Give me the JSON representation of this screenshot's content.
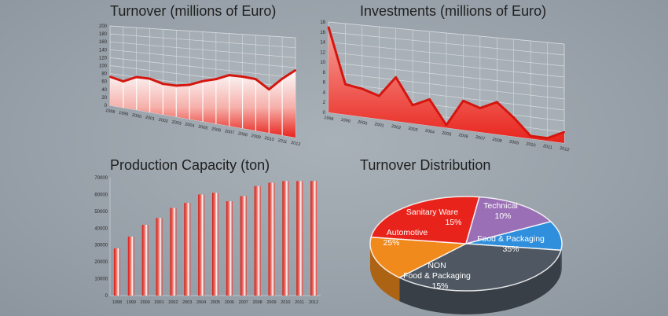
{
  "charts": {
    "turnover": {
      "title": "Turnover (millions of Euro)",
      "chart_data": {
        "type": "area",
        "title": "Turnover (millions of Euro)",
        "x": [
          "1998",
          "1999",
          "2000",
          "2001",
          "2002",
          "2003",
          "2004",
          "2005",
          "2006",
          "2007",
          "2008",
          "2009",
          "2010",
          "2011",
          "2012"
        ],
        "y_ticks": [
          "0",
          "20",
          "40",
          "60",
          "80",
          "100",
          "120",
          "140",
          "160",
          "180",
          "200"
        ],
        "ylim": [
          0,
          200
        ],
        "values": [
          72,
          65,
          80,
          80,
          72,
          72,
          78,
          90,
          98,
          110,
          110,
          108,
          90,
          115,
          135
        ],
        "grid": true,
        "color": "#e8231c"
      }
    },
    "investments": {
      "title": "Investments (millions of Euro)",
      "chart_data": {
        "type": "area",
        "title": "Investments (millions of Euro)",
        "x": [
          "1998",
          "1999",
          "2000",
          "2001",
          "2002",
          "2003",
          "2004",
          "2005",
          "2006",
          "2007",
          "2008",
          "2009",
          "2010",
          "2011",
          "2012"
        ],
        "y_ticks": [
          "0",
          "2",
          "4",
          "6",
          "8",
          "10",
          "12",
          "14",
          "16",
          "18"
        ],
        "ylim": [
          0,
          18
        ],
        "values": [
          17,
          6,
          5.5,
          4.5,
          8.5,
          3.5,
          5,
          0.5,
          5.5,
          4.5,
          6,
          3.5,
          0.5,
          0.5,
          2
        ],
        "grid": true,
        "color": "#e8231c"
      }
    },
    "capacity": {
      "title": "Production Capacity (ton)",
      "chart_data": {
        "type": "bar",
        "title": "Production Capacity (ton)",
        "categories": [
          "1998",
          "1999",
          "2000",
          "2001",
          "2002",
          "2003",
          "2004",
          "2005",
          "2006",
          "2007",
          "2008",
          "2009",
          "2010",
          "2011",
          "2012"
        ],
        "y_ticks": [
          "0",
          "10000",
          "20000",
          "30000",
          "40000",
          "50000",
          "60000",
          "70000"
        ],
        "ylim": [
          0,
          70000
        ],
        "values": [
          28000,
          35000,
          42000,
          46000,
          52000,
          55000,
          60000,
          61000,
          56000,
          59000,
          65000,
          67000,
          68000,
          68000,
          68000
        ],
        "grid": false,
        "color": "#e8231c"
      }
    },
    "distribution": {
      "title": "Turnover Distribution",
      "chart_data": {
        "type": "pie",
        "title": "Turnover Distribution",
        "slices": [
          {
            "label": "Technical",
            "value": 10,
            "value_label": "10%",
            "color": "#2f8fdc"
          },
          {
            "label": "Food & Packaging",
            "value": 35,
            "value_label": "35%",
            "color": "#4f5862"
          },
          {
            "label": "NON\nFood & Packaging",
            "value": 15,
            "value_label": "15%",
            "color": "#f08a1c"
          },
          {
            "label": "Automotive",
            "value": 25,
            "value_label": "25%",
            "color": "#e8231c"
          },
          {
            "label": "Sanitary Ware",
            "value": 15,
            "value_label": "15%",
            "color": "#9b6fb5"
          }
        ]
      }
    }
  }
}
